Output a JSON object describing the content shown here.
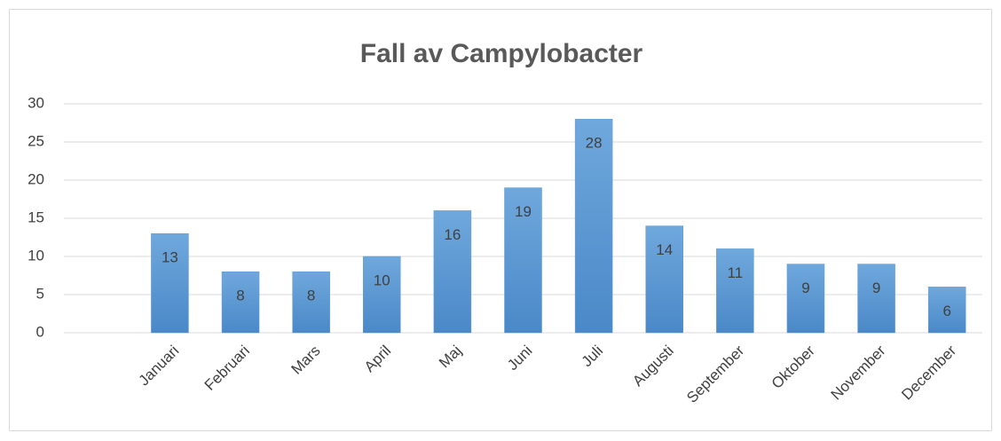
{
  "chart_data": {
    "type": "bar",
    "title": "Fall av Campylobacter",
    "categories": [
      null,
      "Januari",
      "Februari",
      "Mars",
      "April",
      "Maj",
      "Juni",
      "Juli",
      "Augusti",
      "September",
      "Oktober",
      "November",
      "December"
    ],
    "values": [
      null,
      13,
      8,
      8,
      10,
      16,
      19,
      28,
      14,
      11,
      9,
      9,
      6
    ],
    "color": "#5b9bd5",
    "ylim": [
      0,
      30
    ],
    "yticks": [
      0,
      5,
      10,
      15,
      20,
      25,
      30
    ],
    "grid": true
  }
}
